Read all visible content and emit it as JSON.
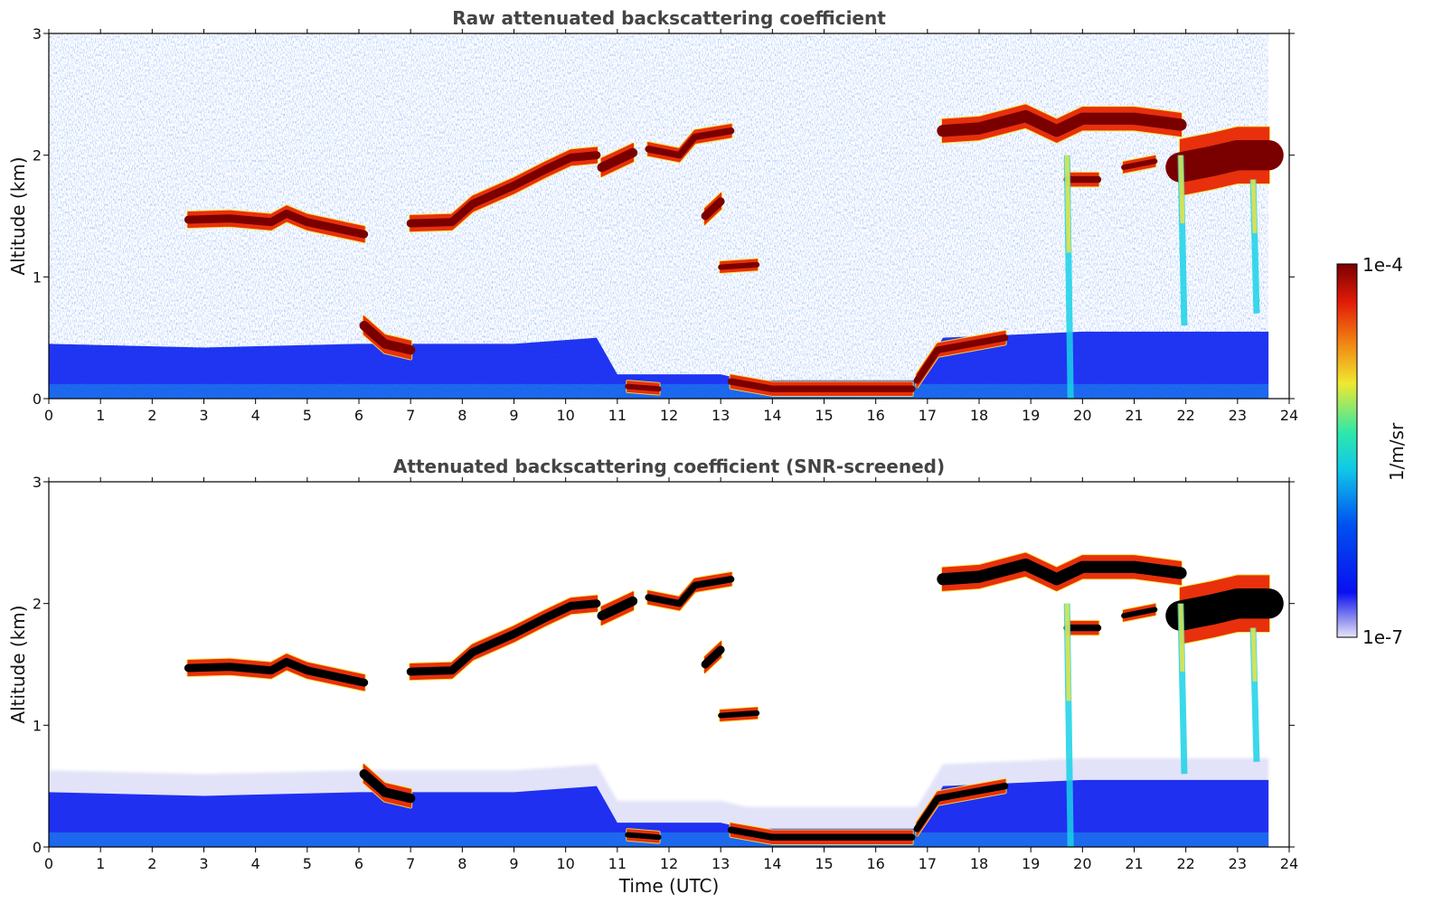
{
  "colors": {
    "low": "#dfe0f8",
    "blue": "#0a1cf0",
    "cyan": "#1ad2e8",
    "yellow": "#f6e53a",
    "red": "#e8300c",
    "darkred": "#7a0000",
    "screened_top": "#000000"
  },
  "colorbar": {
    "max_label": "1e-4",
    "min_label": "1e-7",
    "unit_label": "1/m/sr"
  },
  "chart_data": [
    {
      "type": "heatmap",
      "title": "Raw attenuated backscattering coefficient",
      "xlabel": "",
      "ylabel": "Altitude (km)",
      "xlim": [
        0,
        24
      ],
      "ylim": [
        0,
        3
      ],
      "xticks": [
        "0",
        "1",
        "2",
        "3",
        "4",
        "5",
        "6",
        "7",
        "8",
        "9",
        "10",
        "11",
        "12",
        "13",
        "14",
        "15",
        "16",
        "17",
        "18",
        "19",
        "20",
        "21",
        "22",
        "23",
        "24"
      ],
      "yticks": [
        "0",
        "1",
        "2",
        "3"
      ],
      "data_end_hour": 23.6,
      "boundary_layer_top_km": [
        [
          0,
          0.45
        ],
        [
          3,
          0.42
        ],
        [
          6,
          0.45
        ],
        [
          9,
          0.45
        ],
        [
          10.6,
          0.5
        ],
        [
          11,
          0.2
        ],
        [
          13,
          0.2
        ],
        [
          13.5,
          0.15
        ],
        [
          16.8,
          0.15
        ],
        [
          17.3,
          0.5
        ],
        [
          20,
          0.55
        ],
        [
          23.6,
          0.55
        ]
      ],
      "cloud_layers": [
        {
          "points": [
            [
              2.7,
              1.47
            ],
            [
              3.5,
              1.48
            ],
            [
              4.3,
              1.45
            ],
            [
              4.6,
              1.52
            ],
            [
              5.0,
              1.45
            ],
            [
              6.1,
              1.35
            ]
          ],
          "thickness_km": 0.12
        },
        {
          "points": [
            [
              7.0,
              1.44
            ],
            [
              7.8,
              1.45
            ],
            [
              8.2,
              1.6
            ],
            [
              9.0,
              1.75
            ],
            [
              9.6,
              1.88
            ],
            [
              10.1,
              1.98
            ],
            [
              10.6,
              2.0
            ]
          ],
          "thickness_km": 0.12
        },
        {
          "points": [
            [
              10.7,
              1.9
            ],
            [
              11.3,
              2.02
            ]
          ],
          "thickness_km": 0.14
        },
        {
          "points": [
            [
              11.6,
              2.05
            ],
            [
              12.2,
              2.0
            ],
            [
              12.5,
              2.15
            ],
            [
              13.2,
              2.2
            ]
          ],
          "thickness_km": 0.1
        },
        {
          "points": [
            [
              12.7,
              1.5
            ],
            [
              13.0,
              1.62
            ]
          ],
          "thickness_km": 0.12
        },
        {
          "points": [
            [
              13.0,
              1.08
            ],
            [
              13.7,
              1.1
            ]
          ],
          "thickness_km": 0.08
        },
        {
          "points": [
            [
              6.1,
              0.6
            ],
            [
              6.5,
              0.45
            ],
            [
              7.0,
              0.4
            ]
          ],
          "thickness_km": 0.14
        },
        {
          "points": [
            [
              11.2,
              0.1
            ],
            [
              11.8,
              0.08
            ]
          ],
          "thickness_km": 0.08
        },
        {
          "points": [
            [
              13.2,
              0.14
            ],
            [
              14.0,
              0.08
            ],
            [
              16.7,
              0.08
            ]
          ],
          "thickness_km": 0.1
        },
        {
          "points": [
            [
              16.8,
              0.15
            ],
            [
              17.2,
              0.4
            ],
            [
              18.5,
              0.5
            ]
          ],
          "thickness_km": 0.1
        },
        {
          "points": [
            [
              17.3,
              2.2
            ],
            [
              18.0,
              2.22
            ],
            [
              18.9,
              2.32
            ],
            [
              19.5,
              2.2
            ],
            [
              20.0,
              2.3
            ],
            [
              21.0,
              2.3
            ],
            [
              21.9,
              2.25
            ]
          ],
          "thickness_km": 0.18
        },
        {
          "points": [
            [
              21.9,
              1.9
            ],
            [
              22.5,
              1.95
            ],
            [
              23.0,
              2.0
            ],
            [
              23.6,
              2.0
            ]
          ],
          "thickness_km": 0.45
        },
        {
          "points": [
            [
              19.7,
              1.8
            ],
            [
              20.3,
              1.8
            ]
          ],
          "thickness_km": 0.1
        },
        {
          "points": [
            [
              20.8,
              1.9
            ],
            [
              21.4,
              1.95
            ]
          ],
          "thickness_km": 0.08
        }
      ],
      "precipitation_streaks": [
        {
          "x": 19.7,
          "top_km": 2.0,
          "bottom_km": 0.0
        },
        {
          "x": 21.9,
          "top_km": 2.0,
          "bottom_km": 0.6
        },
        {
          "x": 23.3,
          "top_km": 1.8,
          "bottom_km": 0.7
        }
      ]
    },
    {
      "type": "heatmap",
      "title": "Attenuated backscattering coefficient (SNR-screened)",
      "xlabel": "Time (UTC)",
      "ylabel": "Altitude (km)",
      "xlim": [
        0,
        24
      ],
      "ylim": [
        0,
        3
      ],
      "xticks": [
        "0",
        "1",
        "2",
        "3",
        "4",
        "5",
        "6",
        "7",
        "8",
        "9",
        "10",
        "11",
        "12",
        "13",
        "14",
        "15",
        "16",
        "17",
        "18",
        "19",
        "20",
        "21",
        "22",
        "23",
        "24"
      ],
      "yticks": [
        "0",
        "1",
        "2",
        "3"
      ],
      "data_end_hour": 23.6
    }
  ]
}
